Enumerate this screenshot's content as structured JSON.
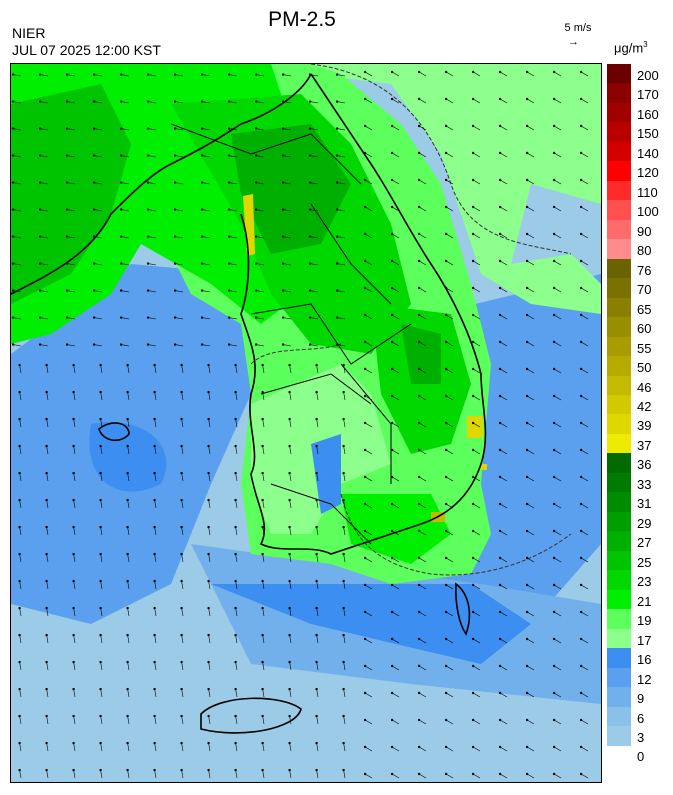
{
  "header": {
    "org": "NIER",
    "datetime": "JUL 07 2025 12:00 KST",
    "title": "PM-2.5",
    "wind_ref": "5 m/s",
    "wind_arrow": "→",
    "unit": "μg/m",
    "unit_sup": "3"
  },
  "colorbar": {
    "levels": [
      {
        "label": "200",
        "color": "#6b0000"
      },
      {
        "label": "170",
        "color": "#8b0000"
      },
      {
        "label": "160",
        "color": "#a00000"
      },
      {
        "label": "150",
        "color": "#b80000"
      },
      {
        "label": "140",
        "color": "#d40000"
      },
      {
        "label": "120",
        "color": "#ff0000"
      },
      {
        "label": "110",
        "color": "#ff2a2a"
      },
      {
        "label": "100",
        "color": "#ff5050"
      },
      {
        "label": "90",
        "color": "#ff6a6a"
      },
      {
        "label": "80",
        "color": "#ff8c8c"
      },
      {
        "label": "76",
        "color": "#6b6300"
      },
      {
        "label": "70",
        "color": "#7a7100"
      },
      {
        "label": "65",
        "color": "#8a7f00"
      },
      {
        "label": "60",
        "color": "#998e00"
      },
      {
        "label": "55",
        "color": "#a89c00"
      },
      {
        "label": "50",
        "color": "#b8ab00"
      },
      {
        "label": "46",
        "color": "#c6ba00"
      },
      {
        "label": "42",
        "color": "#d4c800"
      },
      {
        "label": "39",
        "color": "#e0d600"
      },
      {
        "label": "37",
        "color": "#eeea00"
      },
      {
        "label": "36",
        "color": "#006b00"
      },
      {
        "label": "33",
        "color": "#007a00"
      },
      {
        "label": "31",
        "color": "#008c00"
      },
      {
        "label": "29",
        "color": "#009e00"
      },
      {
        "label": "27",
        "color": "#00b000"
      },
      {
        "label": "25",
        "color": "#00c400"
      },
      {
        "label": "23",
        "color": "#00d800"
      },
      {
        "label": "21",
        "color": "#00ee00"
      },
      {
        "label": "19",
        "color": "#5cff5c"
      },
      {
        "label": "17",
        "color": "#8cff8c"
      },
      {
        "label": "16",
        "color": "#3c8ef0"
      },
      {
        "label": "12",
        "color": "#5aa0ee"
      },
      {
        "label": "9",
        "color": "#72b0ec"
      },
      {
        "label": "6",
        "color": "#8ac0ea"
      },
      {
        "label": "3",
        "color": "#9ccbe8"
      },
      {
        "label": "0",
        "color": ""
      }
    ]
  }
}
